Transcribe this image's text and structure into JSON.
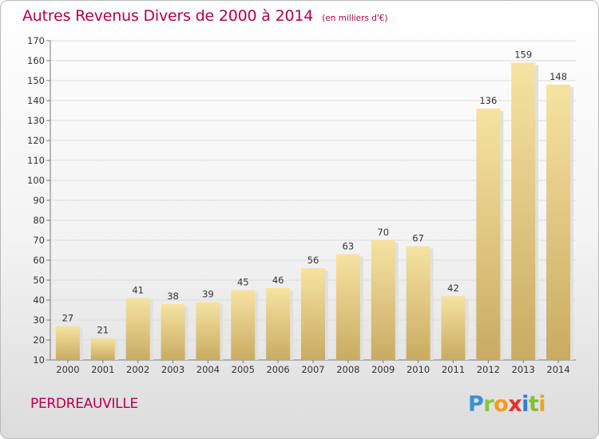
{
  "header": {
    "title": "Autres Revenus Divers de 2000 à 2014",
    "subtitle": "(en milliers d'€)"
  },
  "footer": {
    "commune": "PERDREAUVILLE",
    "logo_text": "Proxiti"
  },
  "chart_data": {
    "type": "bar",
    "title": "Autres Revenus Divers de 2000 à 2014",
    "subtitle": "(en milliers d'€)",
    "categories": [
      "2000",
      "2001",
      "2002",
      "2003",
      "2004",
      "2005",
      "2006",
      "2007",
      "2008",
      "2009",
      "2010",
      "2011",
      "2012",
      "2013",
      "2014"
    ],
    "values": [
      27,
      21,
      41,
      38,
      39,
      45,
      46,
      56,
      63,
      70,
      67,
      42,
      136,
      159,
      148
    ],
    "ylim": [
      10,
      170
    ],
    "yticks": [
      10,
      20,
      30,
      40,
      50,
      60,
      70,
      80,
      90,
      100,
      110,
      120,
      130,
      140,
      150,
      160,
      170
    ],
    "grid": true,
    "bar_color_light": "#f6e3a1",
    "bar_color_dark": "#c9ab62",
    "bar_shadow_color": "#e0e0e0",
    "grid_color": "#dcdcdc"
  }
}
